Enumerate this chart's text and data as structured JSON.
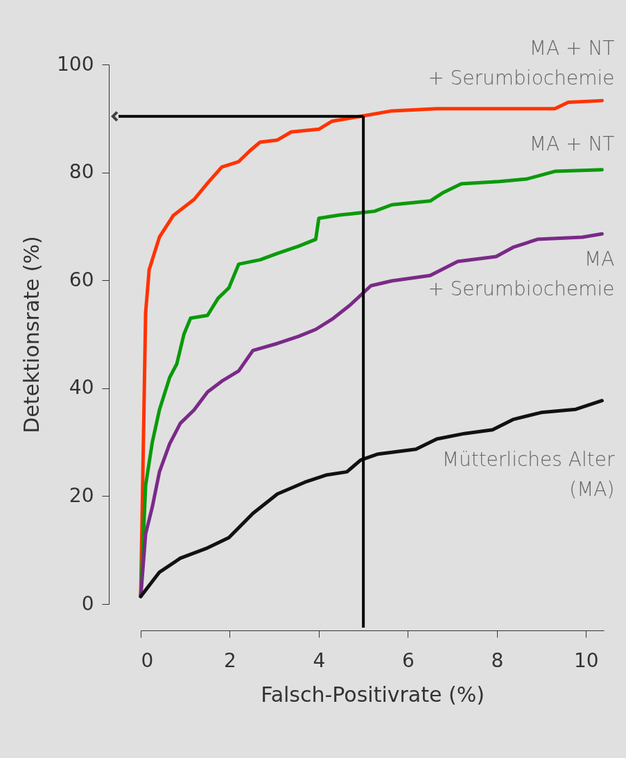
{
  "chart_data": {
    "type": "line",
    "xlabel": "Falsch-Positivrate (%)",
    "ylabel": "Detektionsrate (%)",
    "xlim": [
      0,
      10.4
    ],
    "ylim": [
      0,
      100
    ],
    "xticks": [
      0,
      2,
      4,
      6,
      8,
      10
    ],
    "yticks": [
      0,
      20,
      40,
      60,
      80,
      100
    ],
    "series": [
      {
        "name": "MA + NT\n+ Serumbiochemie",
        "color": "#ff3300",
        "x": [
          0,
          0.11,
          0.19,
          0.42,
          0.73,
          1.2,
          1.5,
          1.82,
          2.2,
          2.45,
          2.68,
          3.07,
          3.38,
          4.0,
          4.3,
          4.94,
          5.64,
          6.65,
          9.3,
          9.6,
          10.36
        ],
        "values": [
          1.4,
          54,
          62,
          68,
          72,
          75,
          78,
          81,
          82,
          84,
          85.6,
          86,
          87.5,
          88,
          89.5,
          90.4,
          91.4,
          91.8,
          91.8,
          93,
          93.3
        ]
      },
      {
        "name": "MA + NT",
        "color": "#0a9a0a",
        "x": [
          0,
          0.11,
          0.26,
          0.42,
          0.65,
          0.81,
          0.97,
          1.12,
          1.5,
          1.74,
          1.98,
          2.2,
          2.68,
          3.07,
          3.54,
          3.93,
          4.0,
          4.47,
          5.25,
          5.64,
          6.5,
          6.8,
          7.2,
          8.05,
          8.68,
          9.3,
          10.36
        ],
        "values": [
          1.4,
          22,
          30,
          36,
          42,
          44.5,
          50,
          53,
          53.5,
          56.7,
          58.6,
          63,
          63.8,
          65,
          66.3,
          67.6,
          71.5,
          72.1,
          72.8,
          74,
          74.7,
          76.3,
          77.9,
          78.3,
          78.8,
          80.2,
          80.5
        ]
      },
      {
        "name": "MA\n+ Serumbiochemie",
        "color": "#7a2a88",
        "x": [
          0,
          0.11,
          0.26,
          0.42,
          0.65,
          0.89,
          1.2,
          1.5,
          1.82,
          2.2,
          2.52,
          3.07,
          3.54,
          3.93,
          4.3,
          4.7,
          5.17,
          5.64,
          6.5,
          7.12,
          7.98,
          8.36,
          8.91,
          9.92,
          10.36
        ],
        "values": [
          1.4,
          13,
          18,
          24.5,
          29.7,
          33.5,
          36,
          39.3,
          41.3,
          43.2,
          47,
          48.3,
          49.6,
          50.9,
          52.8,
          55.4,
          59,
          59.9,
          60.9,
          63.5,
          64.4,
          66.1,
          67.6,
          68,
          68.6
        ]
      },
      {
        "name": "Mütterliches Alter\n(MA)",
        "color": "#111111",
        "x": [
          0,
          0.42,
          0.89,
          1.5,
          1.98,
          2.52,
          3.07,
          3.69,
          4.16,
          4.63,
          4.94,
          5.33,
          6.18,
          6.65,
          7.27,
          7.9,
          8.36,
          8.99,
          9.77,
          10.36
        ],
        "values": [
          1.4,
          5.9,
          8.5,
          10.4,
          12.3,
          16.8,
          20.4,
          22.6,
          23.9,
          24.5,
          26.7,
          27.8,
          28.7,
          30.6,
          31.6,
          32.3,
          34.2,
          35.5,
          36.1,
          37.7
        ]
      }
    ],
    "ref_lines": [
      {
        "axis": "x",
        "value": 5,
        "color": "#000000"
      },
      {
        "axis": "y",
        "value": 90.4,
        "color": "#000000"
      }
    ]
  }
}
